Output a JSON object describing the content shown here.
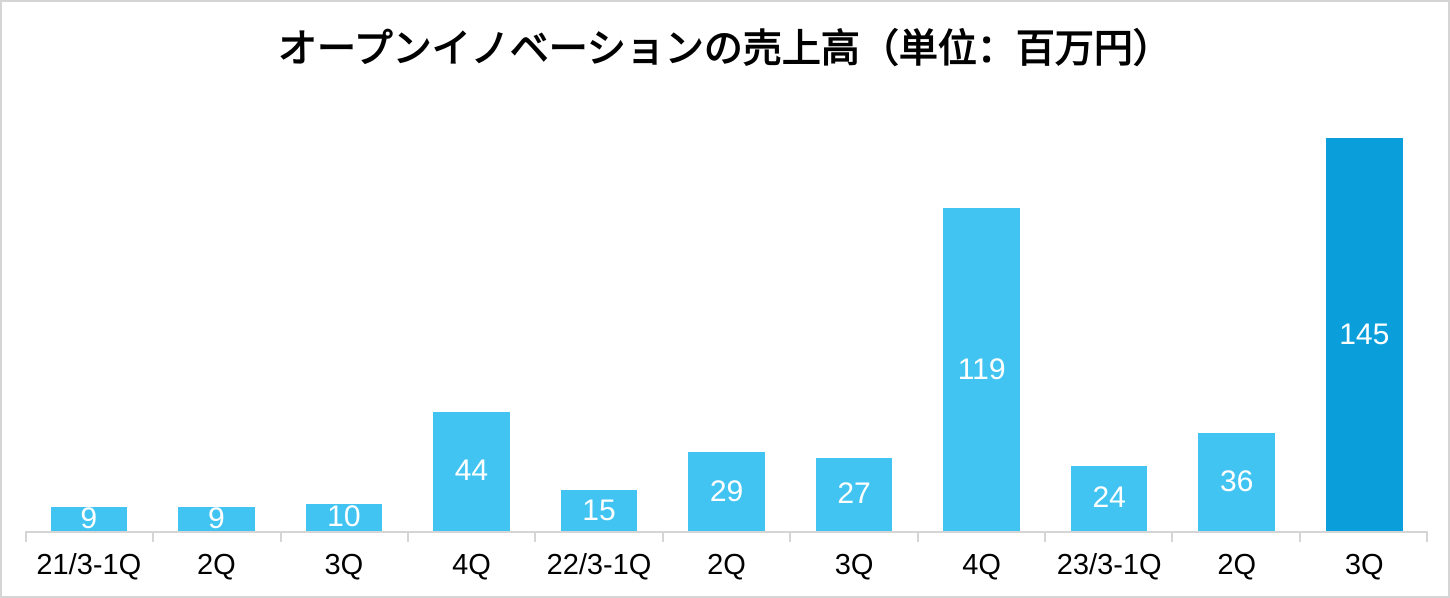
{
  "chart_data": {
    "type": "bar",
    "title": "オープンイノベーションの売上高（単位：百万円）",
    "categories": [
      "21/3-1Q",
      "2Q",
      "3Q",
      "4Q",
      "22/3-1Q",
      "2Q",
      "3Q",
      "4Q",
      "23/3-1Q",
      "2Q",
      "3Q"
    ],
    "values": [
      9,
      9,
      10,
      44,
      15,
      29,
      27,
      119,
      24,
      36,
      145
    ],
    "xlabel": "",
    "ylabel": "",
    "ylim": [
      0,
      145
    ],
    "grid": false,
    "legend": false,
    "y_axis_visible": false,
    "data_labels": "centered-white",
    "colors": {
      "bar": "#41c4f1",
      "highlight_bar": "#0a9edb",
      "highlight_index": 10,
      "value_label": "#ffffff",
      "axis": "#d5d5d5",
      "title_text": "#000000",
      "category_text": "#000000",
      "background": "#ffffff"
    }
  }
}
